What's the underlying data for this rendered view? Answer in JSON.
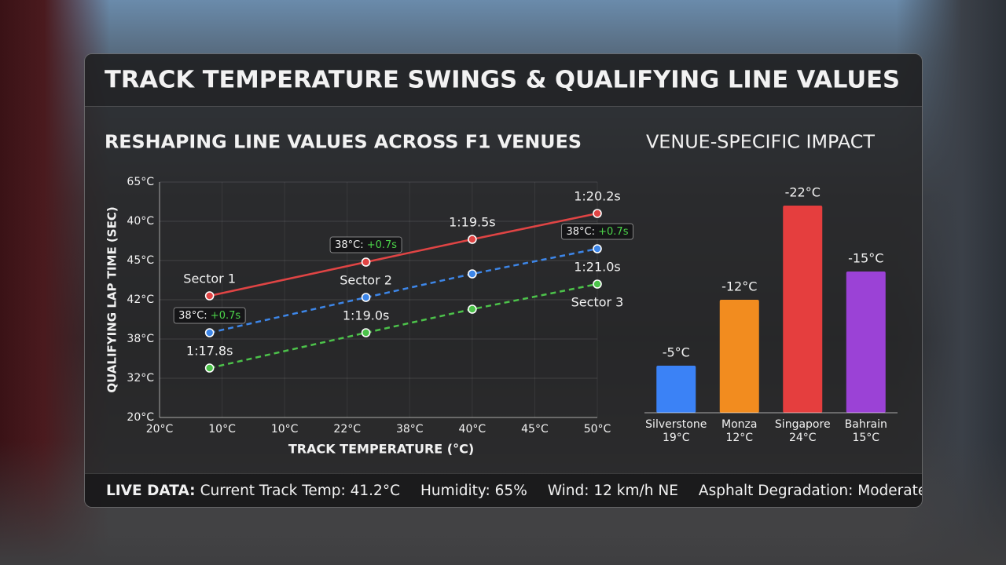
{
  "header": {
    "title": "TRACK TEMPERATURE SWINGS & QUALIFYING LINE VALUES"
  },
  "chart_data": [
    {
      "type": "line",
      "title": "RESHAPING LINE VALUES ACROSS F1 VENUES",
      "xlabel": "TRACK TEMPERATURE (°C)",
      "ylabel": "QUALIFYING LAP TIME (SEC)",
      "xlim": [
        0,
        7
      ],
      "xticks": [
        {
          "value": 0,
          "label": "20°C"
        },
        {
          "value": 1,
          "label": "10°C"
        },
        {
          "value": 2,
          "label": "10°C"
        },
        {
          "value": 3,
          "label": "22°C"
        },
        {
          "value": 4,
          "label": "38°C"
        },
        {
          "value": 5,
          "label": "40°C"
        },
        {
          "value": 6,
          "label": "45°C"
        },
        {
          "value": 7,
          "label": "50°C"
        }
      ],
      "ylim": [
        0,
        6
      ],
      "yticks": [
        {
          "value": 0,
          "label": "20°C"
        },
        {
          "value": 1,
          "label": "32°C"
        },
        {
          "value": 2,
          "label": "38°C"
        },
        {
          "value": 3,
          "label": "42°C"
        },
        {
          "value": 4,
          "label": "45°C"
        },
        {
          "value": 5,
          "label": "40°C"
        },
        {
          "value": 6,
          "label": "65°C"
        }
      ],
      "grid": true,
      "x": [
        0.8,
        3.3,
        5,
        7
      ],
      "series": [
        {
          "name": "Sector 1",
          "color": "#e04444",
          "dashed": false,
          "values": [
            3.1,
            3.96,
            4.54,
            5.2
          ],
          "point_labels": [
            null,
            null,
            "1:19.5s",
            "1:20.2s"
          ],
          "callouts": [
            null,
            {
              "text": "38°C:",
              "delta": "+0.7s"
            },
            null,
            null
          ]
        },
        {
          "name": "Sector 2",
          "color": "#3d86e8",
          "dashed": true,
          "values": [
            2.16,
            3.06,
            3.66,
            4.3
          ],
          "point_labels": [
            null,
            null,
            null,
            null
          ],
          "callouts": [
            {
              "text": "38°C:",
              "delta": "+0.7s"
            },
            null,
            null,
            {
              "text": "38°C:",
              "delta": "+0.7s"
            }
          ]
        },
        {
          "name": "Sector 3",
          "color": "#4cc24a",
          "dashed": true,
          "values": [
            1.26,
            2.16,
            2.76,
            3.4
          ],
          "point_labels": [
            "1:17.8s",
            "1:19.0s",
            null,
            "1:21.0s"
          ],
          "callouts": [
            null,
            null,
            null,
            null
          ]
        }
      ]
    },
    {
      "type": "bar",
      "title": "VENUE-SPECIFIC IMPACT",
      "categories": [
        "Silverstone",
        "Monza",
        "Singapore",
        "Bahrain"
      ],
      "category_sublabels": [
        "19°C",
        "12°C",
        "24°C",
        "15°C"
      ],
      "values": [
        -5,
        -12,
        -22,
        -15
      ],
      "value_labels": [
        "-5°C",
        "-12°C",
        "-22°C",
        "-15°C"
      ],
      "colors": [
        "#3b82f6",
        "#f28c1f",
        "#e53e3e",
        "#9b42d6"
      ],
      "ylim": [
        0,
        -25
      ]
    }
  ],
  "footer": {
    "label": "LIVE DATA:",
    "items": [
      "Current Track Temp: 41.2°C",
      "Humidity: 65%",
      "Wind: 12 km/h NE",
      "Asphalt Degradation: Moderate"
    ]
  }
}
